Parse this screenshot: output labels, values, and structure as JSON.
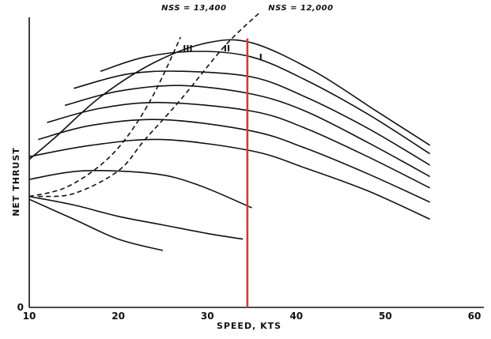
{
  "chart_data": {
    "type": "line",
    "xlabel": "SPEED, KTS",
    "ylabel": "NET THRUST",
    "xlim": [
      10,
      60
    ],
    "ylim": [
      0,
      10
    ],
    "x_ticks": [
      10,
      20,
      30,
      40,
      50,
      60
    ],
    "y_ticks": [
      0
    ],
    "grid": false,
    "series": [
      {
        "x": [
          10,
          13,
          18,
          24,
          30,
          35,
          42,
          49,
          55
        ],
        "y": [
          5.2,
          6.0,
          7.4,
          8.6,
          9.3,
          9.3,
          8.3,
          6.9,
          5.7
        ]
      },
      {
        "x": [
          18,
          23,
          29,
          35,
          41,
          48,
          55
        ],
        "y": [
          8.3,
          8.8,
          9.0,
          8.8,
          8.0,
          6.8,
          5.4
        ]
      },
      {
        "x": [
          15,
          21,
          27,
          35,
          41,
          48,
          55
        ],
        "y": [
          7.7,
          8.2,
          8.3,
          8.1,
          7.4,
          6.3,
          5.0
        ]
      },
      {
        "x": [
          14,
          20,
          27,
          35,
          41,
          48,
          55
        ],
        "y": [
          7.1,
          7.6,
          7.8,
          7.5,
          6.9,
          5.8,
          4.6
        ]
      },
      {
        "x": [
          12,
          18,
          25,
          35,
          41,
          48,
          55
        ],
        "y": [
          6.5,
          7.0,
          7.2,
          6.9,
          6.3,
          5.3,
          4.2
        ]
      },
      {
        "x": [
          11,
          17,
          25,
          35,
          41,
          48,
          55
        ],
        "y": [
          5.9,
          6.4,
          6.6,
          6.2,
          5.6,
          4.7,
          3.7
        ]
      },
      {
        "x": [
          10,
          17,
          25,
          35,
          41,
          48,
          55
        ],
        "y": [
          5.3,
          5.7,
          5.9,
          5.5,
          4.9,
          4.1,
          3.1
        ]
      },
      {
        "x": [
          10,
          16,
          24,
          29,
          35
        ],
        "y": [
          4.5,
          4.8,
          4.7,
          4.3,
          3.5
        ]
      },
      {
        "x": [
          10,
          15,
          20,
          25,
          30,
          34
        ],
        "y": [
          3.9,
          3.6,
          3.2,
          2.9,
          2.6,
          2.4
        ]
      },
      {
        "x": [
          10,
          15,
          20,
          25
        ],
        "y": [
          3.8,
          3.1,
          2.4,
          2.0
        ]
      }
    ],
    "dashed_series": [
      {
        "x": [
          10,
          14,
          18,
          21,
          24,
          27
        ],
        "y": [
          3.9,
          4.2,
          5.0,
          6.0,
          7.5,
          9.5
        ]
      },
      {
        "x": [
          11,
          15,
          20,
          23,
          27,
          32,
          36
        ],
        "y": [
          3.9,
          4.0,
          4.8,
          5.9,
          7.3,
          9.2,
          10.4
        ]
      }
    ],
    "vertical_line": {
      "x": 34.5,
      "color": "#d03a3a"
    },
    "annotations": [
      {
        "text": "NSS = 13,400",
        "x": 28.5,
        "y": 10.45
      },
      {
        "text": "NSS = 12,000",
        "x": 40.5,
        "y": 10.45
      },
      {
        "text": "III",
        "x": 27.8,
        "y": 9.0
      },
      {
        "text": "II",
        "x": 32.2,
        "y": 9.0
      },
      {
        "text": "I",
        "x": 36.0,
        "y": 8.7
      }
    ]
  }
}
